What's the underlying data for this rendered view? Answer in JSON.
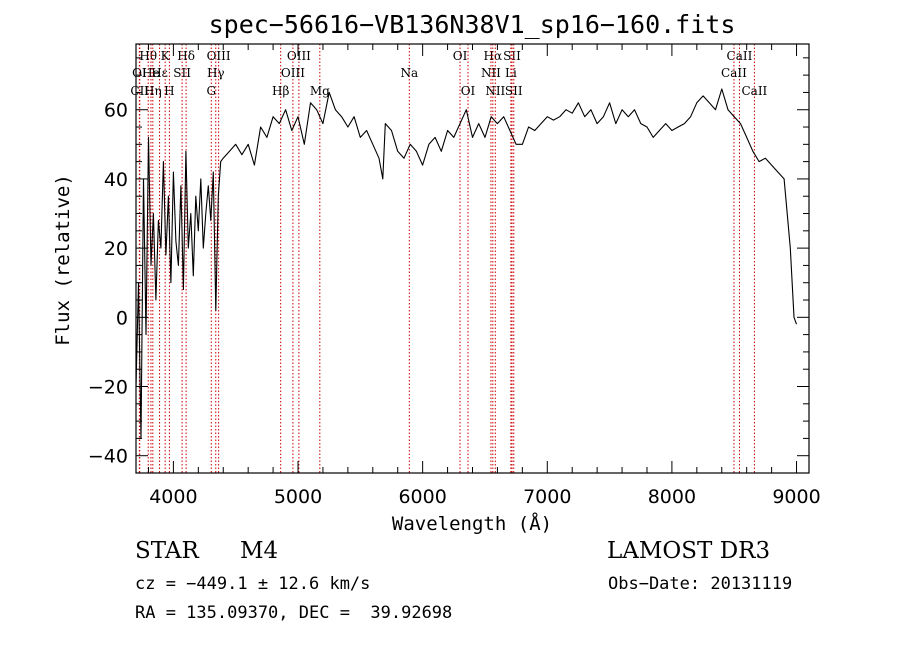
{
  "chart_data": {
    "type": "line",
    "title": "spec−56616−VB136N38V1_sp16−160.fits",
    "xlabel": "Wavelength (Å)",
    "ylabel": "Flux (relative)",
    "xlim": [
      3700,
      9100
    ],
    "ylim": [
      -45,
      79
    ],
    "xticks": [
      4000,
      5000,
      6000,
      7000,
      8000,
      9000
    ],
    "yticks": [
      -40,
      -20,
      0,
      20,
      40,
      60
    ],
    "grid": false,
    "series": [
      {
        "name": "flux",
        "x": [
          3700,
          3720,
          3740,
          3760,
          3780,
          3800,
          3820,
          3840,
          3860,
          3880,
          3900,
          3920,
          3940,
          3960,
          3980,
          4000,
          4020,
          4040,
          4060,
          4080,
          4100,
          4120,
          4140,
          4160,
          4180,
          4200,
          4220,
          4240,
          4260,
          4280,
          4300,
          4320,
          4340,
          4360,
          4380,
          4400,
          4450,
          4500,
          4550,
          4600,
          4650,
          4700,
          4750,
          4800,
          4850,
          4900,
          4950,
          5000,
          5050,
          5100,
          5150,
          5200,
          5250,
          5300,
          5350,
          5400,
          5450,
          5500,
          5550,
          5600,
          5650,
          5680,
          5700,
          5750,
          5800,
          5850,
          5900,
          5950,
          6000,
          6050,
          6100,
          6150,
          6200,
          6250,
          6300,
          6350,
          6400,
          6450,
          6500,
          6550,
          6600,
          6650,
          6700,
          6750,
          6800,
          6850,
          6900,
          6950,
          7000,
          7050,
          7100,
          7150,
          7200,
          7250,
          7300,
          7350,
          7400,
          7450,
          7500,
          7550,
          7600,
          7650,
          7700,
          7750,
          7800,
          7850,
          7900,
          7950,
          8000,
          8050,
          8100,
          8150,
          8200,
          8250,
          8300,
          8350,
          8400,
          8450,
          8500,
          8550,
          8600,
          8650,
          8700,
          8750,
          8800,
          8850,
          8900,
          8950,
          8980,
          9000
        ],
        "values": [
          -20,
          10,
          -35,
          40,
          -5,
          52,
          15,
          30,
          5,
          28,
          20,
          45,
          18,
          35,
          10,
          42,
          22,
          15,
          38,
          8,
          48,
          20,
          30,
          12,
          35,
          25,
          40,
          20,
          30,
          38,
          28,
          42,
          2,
          35,
          45,
          46,
          48,
          50,
          47,
          50,
          44,
          55,
          52,
          58,
          56,
          60,
          54,
          58,
          50,
          62,
          60,
          56,
          65,
          60,
          58,
          55,
          58,
          52,
          54,
          50,
          46,
          40,
          56,
          54,
          48,
          46,
          50,
          48,
          44,
          50,
          52,
          48,
          54,
          52,
          56,
          60,
          52,
          56,
          52,
          58,
          56,
          58,
          54,
          50,
          50,
          55,
          54,
          56,
          58,
          57,
          58,
          60,
          59,
          62,
          58,
          60,
          56,
          58,
          62,
          56,
          60,
          58,
          60,
          56,
          55,
          52,
          54,
          56,
          54,
          55,
          56,
          58,
          62,
          64,
          62,
          60,
          66,
          60,
          58,
          56,
          52,
          48,
          45,
          46,
          44,
          42,
          40,
          20,
          0,
          -2
        ]
      }
    ],
    "line_markers": [
      {
        "label": "Hθ",
        "wave": 3798,
        "row": 0
      },
      {
        "label": "K",
        "wave": 3934,
        "row": 0
      },
      {
        "label": "Hδ",
        "wave": 4102,
        "row": 0
      },
      {
        "label": "OIII",
        "wave": 4363,
        "row": 0
      },
      {
        "label": "OIII",
        "wave": 5007,
        "row": 0
      },
      {
        "label": "OI",
        "wave": 6300,
        "row": 0
      },
      {
        "label": "Hα",
        "wave": 6563,
        "row": 0
      },
      {
        "label": "SII",
        "wave": 6717,
        "row": 0
      },
      {
        "label": "CaII",
        "wave": 8542,
        "row": 0
      },
      {
        "label": "OI",
        "wave": 3727,
        "row": 1
      },
      {
        "label": "He",
        "wave": 3820,
        "row": 1
      },
      {
        "label": "Hε",
        "wave": 3889,
        "row": 1
      },
      {
        "label": "SII",
        "wave": 4070,
        "row": 1
      },
      {
        "label": "Hγ",
        "wave": 4340,
        "row": 1
      },
      {
        "label": "OIII",
        "wave": 4959,
        "row": 1
      },
      {
        "label": "Na",
        "wave": 5893,
        "row": 1
      },
      {
        "label": "NII",
        "wave": 6548,
        "row": 1
      },
      {
        "label": "Li",
        "wave": 6708,
        "row": 1
      },
      {
        "label": "CaII",
        "wave": 8498,
        "row": 1
      },
      {
        "label": "CII",
        "wave": 3730,
        "row": 2
      },
      {
        "label": "Hη",
        "wave": 3835,
        "row": 2
      },
      {
        "label": "H",
        "wave": 3968,
        "row": 2
      },
      {
        "label": "G",
        "wave": 4304,
        "row": 2
      },
      {
        "label": "Hβ",
        "wave": 4861,
        "row": 2
      },
      {
        "label": "Mg",
        "wave": 5175,
        "row": 2
      },
      {
        "label": "OI",
        "wave": 6364,
        "row": 2
      },
      {
        "label": "NII",
        "wave": 6583,
        "row": 2
      },
      {
        "label": "SII",
        "wave": 6731,
        "row": 2
      },
      {
        "label": "CaII",
        "wave": 8662,
        "row": 2
      }
    ]
  },
  "info": {
    "object_class": "STAR",
    "subclass": "M4",
    "survey": "LAMOST DR3",
    "cz": "cz = −449.1 ± 12.6 km/s",
    "obs_date": "Obs−Date: 20131119",
    "coords": "RA = 135.09370, DEC =  39.92698"
  },
  "colors": {
    "line": "#000000",
    "marker": "#cc0000",
    "axis": "#000000"
  }
}
